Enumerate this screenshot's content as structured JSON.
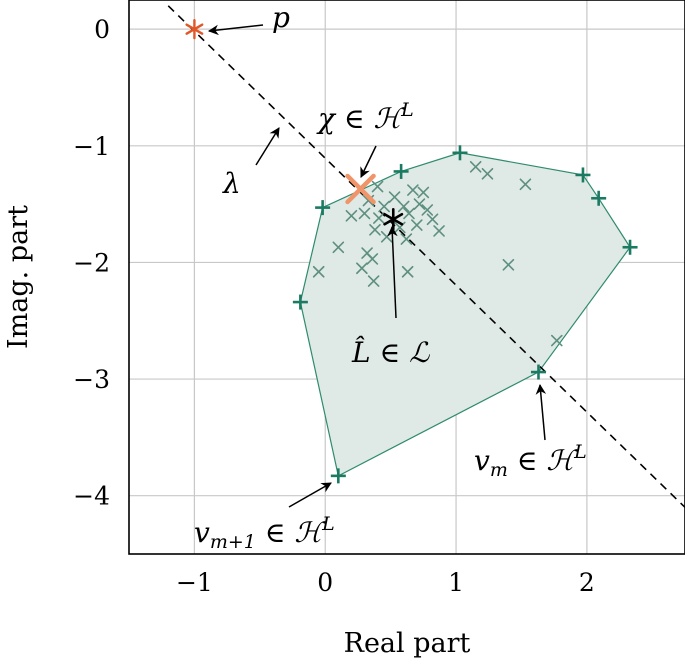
{
  "chart_data": {
    "type": "scatter",
    "xlabel": "Real part",
    "ylabel": "Imag. part",
    "xlim": [
      -1.5,
      2.75
    ],
    "ylim": [
      -4.5,
      0.25
    ],
    "x_ticks": [
      -1,
      0,
      1,
      2
    ],
    "y_ticks": [
      0,
      -1,
      -2,
      -3,
      -4
    ],
    "x_tick_labels": [
      "−1",
      "0",
      "1",
      "2"
    ],
    "y_tick_labels": [
      "0",
      "−1",
      "−2",
      "−3",
      "−4"
    ],
    "grid": true,
    "colors": {
      "vertex": "#1b7a62",
      "interior": "#5e8f80",
      "hull_fill": "#dfe9e5",
      "hull_edge": "#2e8b6e",
      "p_point": "#e0582a",
      "chi_point": "#f0956a",
      "L_hat": "#000000"
    },
    "hull_vertices": [
      {
        "x": -0.02,
        "y": -1.53
      },
      {
        "x": 0.58,
        "y": -1.22
      },
      {
        "x": 1.03,
        "y": -1.06
      },
      {
        "x": 1.97,
        "y": -1.25
      },
      {
        "x": 2.09,
        "y": -1.45
      },
      {
        "x": 2.33,
        "y": -1.87
      },
      {
        "x": 1.63,
        "y": -2.94
      },
      {
        "x": 0.1,
        "y": -3.83
      },
      {
        "x": -0.19,
        "y": -2.34
      }
    ],
    "interior_points": [
      {
        "x": 0.4,
        "y": -1.35
      },
      {
        "x": 0.53,
        "y": -1.44
      },
      {
        "x": 0.67,
        "y": -1.38
      },
      {
        "x": 0.75,
        "y": -1.4
      },
      {
        "x": 0.33,
        "y": -1.47
      },
      {
        "x": 0.45,
        "y": -1.52
      },
      {
        "x": 0.6,
        "y": -1.52
      },
      {
        "x": 0.72,
        "y": -1.5
      },
      {
        "x": 0.78,
        "y": -1.55
      },
      {
        "x": 0.2,
        "y": -1.6
      },
      {
        "x": 0.3,
        "y": -1.58
      },
      {
        "x": 0.41,
        "y": -1.62
      },
      {
        "x": 0.64,
        "y": -1.58
      },
      {
        "x": 0.82,
        "y": -1.63
      },
      {
        "x": 0.38,
        "y": -1.72
      },
      {
        "x": 0.57,
        "y": -1.7
      },
      {
        "x": 0.7,
        "y": -1.68
      },
      {
        "x": 0.47,
        "y": -1.78
      },
      {
        "x": 0.62,
        "y": -1.8
      },
      {
        "x": 0.87,
        "y": -1.73
      },
      {
        "x": 0.1,
        "y": -1.87
      },
      {
        "x": 0.32,
        "y": -1.92
      },
      {
        "x": 0.36,
        "y": -1.97
      },
      {
        "x": 0.28,
        "y": -2.05
      },
      {
        "x": 0.37,
        "y": -2.16
      },
      {
        "x": 0.63,
        "y": -2.08
      },
      {
        "x": -0.05,
        "y": -2.08
      },
      {
        "x": 1.15,
        "y": -1.18
      },
      {
        "x": 1.24,
        "y": -1.24
      },
      {
        "x": 1.53,
        "y": -1.33
      },
      {
        "x": 1.4,
        "y": -2.02
      },
      {
        "x": 1.77,
        "y": -2.67
      }
    ],
    "p_point": {
      "x": -1.0,
      "y": 0.0
    },
    "chi_point": {
      "x": 0.27,
      "y": -1.37
    },
    "L_hat_point": {
      "x": 0.52,
      "y": -1.63
    },
    "dashed_line": [
      {
        "x": -1.2,
        "y": 0.2
      },
      {
        "x": 2.75,
        "y": -4.1
      }
    ],
    "annotations": {
      "p": "p",
      "lambda": "λ",
      "chi": "χ ∈ ℋ",
      "chi_sup": "L",
      "L_hat": "L̂ ∈ ℒ",
      "vm": "v",
      "vm_sub": "m",
      "vm_tail": " ∈ ℋ",
      "vm_sup": "L",
      "vm1": "v",
      "vm1_sub": "m+1",
      "vm1_tail": " ∈ ℋ",
      "vm1_sup": "L"
    }
  }
}
